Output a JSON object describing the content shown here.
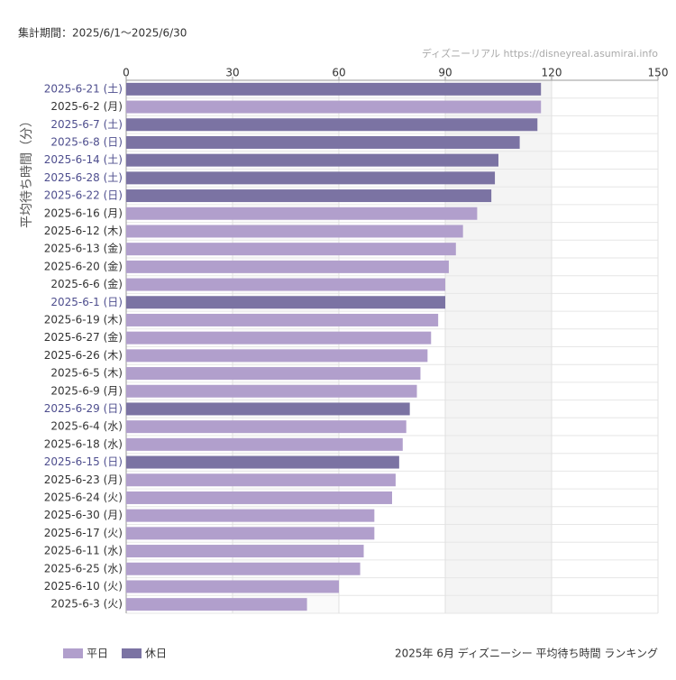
{
  "chart_data": {
    "type": "bar",
    "orientation": "horizontal",
    "title": "2025年 6月 ディズニーシー 平均待ち時間 ランキング",
    "subtitle": "集計期間：2025/6/1〜2025/6/30",
    "source": "ディズニーリアル https://disneyreal.asumirai.info",
    "y_label": "平均待ち時間（分）",
    "categories": [
      "2025-6-21 (土)",
      "2025-6-2 (月)",
      "2025-6-7 (土)",
      "2025-6-8 (日)",
      "2025-6-14 (土)",
      "2025-6-28 (土)",
      "2025-6-22 (日)",
      "2025-6-16 (月)",
      "2025-6-12 (木)",
      "2025-6-13 (金)",
      "2025-6-20 (金)",
      "2025-6-6 (金)",
      "2025-6-1 (日)",
      "2025-6-19 (木)",
      "2025-6-27 (金)",
      "2025-6-26 (木)",
      "2025-6-5 (木)",
      "2025-6-9 (月)",
      "2025-6-29 (日)",
      "2025-6-4 (水)",
      "2025-6-18 (水)",
      "2025-6-15 (日)",
      "2025-6-23 (月)",
      "2025-6-24 (火)",
      "2025-6-30 (月)",
      "2025-6-17 (火)",
      "2025-6-11 (水)",
      "2025-6-25 (水)",
      "2025-6-10 (火)",
      "2025-6-3 (火)"
    ],
    "series": [
      {
        "name": "平日",
        "color": "#b19fcc",
        "values": [
          null,
          117,
          null,
          null,
          null,
          null,
          null,
          99,
          95,
          93,
          91,
          90,
          null,
          88,
          86,
          85,
          83,
          82,
          null,
          79,
          78,
          null,
          76,
          75,
          70,
          70,
          67,
          66,
          60,
          51
        ]
      },
      {
        "name": "休日",
        "color": "#7b73a3",
        "values": [
          117,
          null,
          116,
          111,
          105,
          104,
          103,
          null,
          null,
          null,
          null,
          null,
          90,
          null,
          null,
          null,
          null,
          null,
          80,
          null,
          null,
          77,
          null,
          null,
          null,
          null,
          null,
          null,
          null,
          null
        ]
      }
    ],
    "xlim": [
      0,
      150
    ],
    "xticks": [
      0,
      30,
      60,
      90,
      120,
      150
    ],
    "grid": true,
    "legend": "bottom-left"
  }
}
